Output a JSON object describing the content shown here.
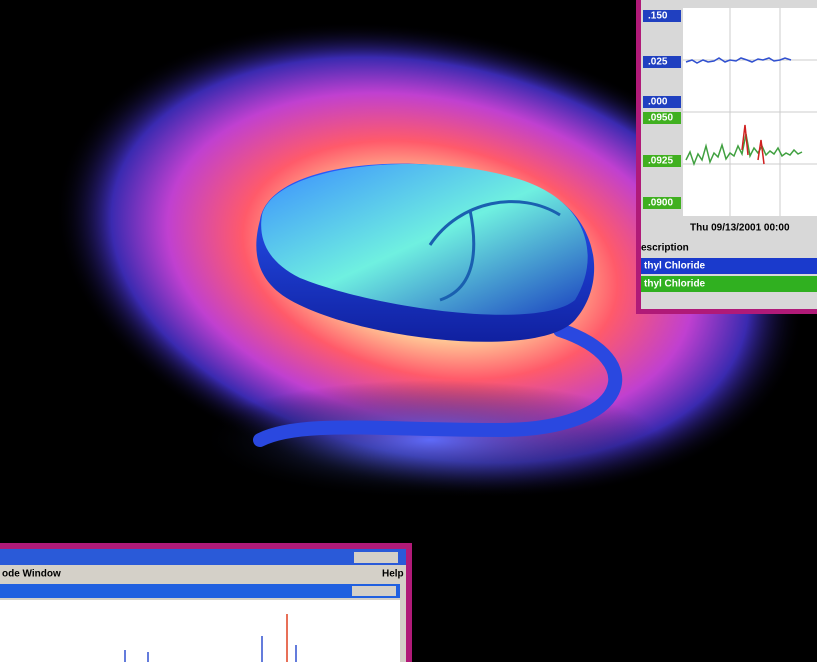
{
  "inset_top": {
    "axis_labels": [
      ".150",
      ".025",
      ".000",
      ".0950",
      ".0925",
      ".0900"
    ],
    "date_label": "Thu 09/13/2001 00:00",
    "table": {
      "header": "escription",
      "rows": [
        "thyl Chloride",
        "thyl Chloride"
      ]
    }
  },
  "inset_bottom": {
    "menu": "ode  Window",
    "help": "Help"
  }
}
